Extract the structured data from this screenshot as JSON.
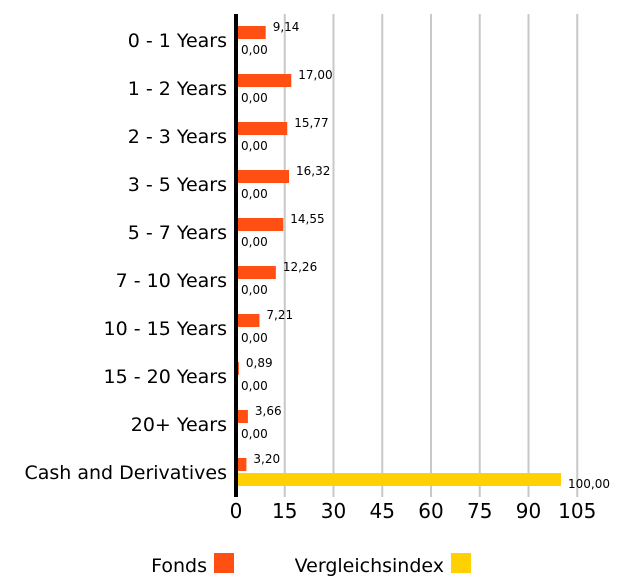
{
  "chart_data": {
    "type": "bar",
    "orientation": "horizontal",
    "categories": [
      "0 - 1 Years",
      "1 - 2 Years",
      "2 - 3 Years",
      "3 - 5 Years",
      "5 - 7 Years",
      "7 - 10 Years",
      "10 - 15 Years",
      "15 - 20 Years",
      "20+ Years",
      "Cash and Derivatives"
    ],
    "series": [
      {
        "name": "Fonds",
        "color": "#ff4f12",
        "values": [
          9.14,
          17.0,
          15.77,
          16.32,
          14.55,
          12.26,
          7.21,
          0.89,
          3.66,
          3.2
        ],
        "value_labels": [
          "9,14",
          "17,00",
          "15,77",
          "16,32",
          "14,55",
          "12,26",
          "7,21",
          "0,89",
          "3,66",
          "3,20"
        ]
      },
      {
        "name": "Vergleichsindex",
        "color": "#ffd100",
        "values": [
          0,
          0,
          0,
          0,
          0,
          0,
          0,
          0,
          0,
          100.0
        ],
        "value_labels": [
          "0,00",
          "0,00",
          "0,00",
          "0,00",
          "0,00",
          "0,00",
          "0,00",
          "0,00",
          "0,00",
          "100,00"
        ]
      }
    ],
    "xlim": [
      0,
      105
    ],
    "xticks": [
      0,
      15,
      30,
      45,
      60,
      75,
      90,
      105
    ],
    "xtick_labels": [
      "0",
      "15",
      "30",
      "45",
      "60",
      "75",
      "90",
      "105"
    ],
    "grid": true,
    "legend_position": "bottom",
    "title": "",
    "xlabel": "",
    "ylabel": ""
  }
}
